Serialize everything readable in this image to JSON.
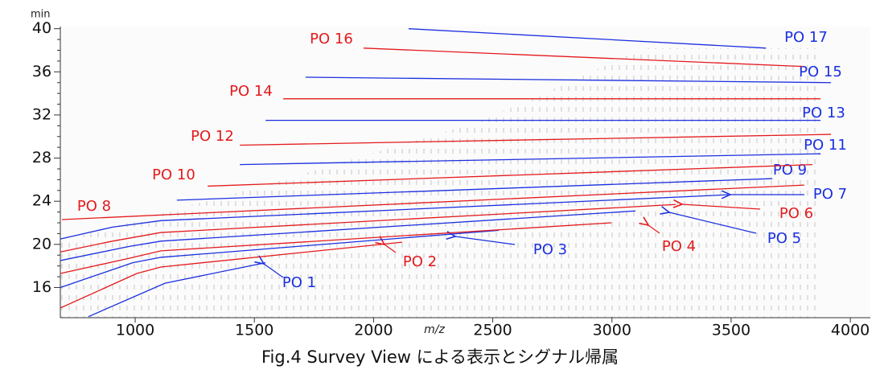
{
  "chart_data": {
    "type": "line",
    "caption": "Fig.4 Survey View による表示とシグナル帰属",
    "x_label": "m/z",
    "y_label": "min",
    "xlim": [
      686,
      4084
    ],
    "ylim": [
      13.2,
      40.2
    ],
    "xticks": [
      1000,
      1500,
      2000,
      2500,
      3000,
      3500,
      4000
    ],
    "yticks": [
      16,
      20,
      24,
      28,
      32,
      36,
      40
    ],
    "series": [
      {
        "name": "PO 1",
        "color": "#1a2fe0",
        "x": [
          804,
          1125,
          1547
        ],
        "values": [
          13.3,
          16.4,
          18.3
        ]
      },
      {
        "name": "PO 2",
        "color": "#e41a1c",
        "x": [
          686,
          1007,
          1108,
          2120
        ],
        "values": [
          14.1,
          17.3,
          17.9,
          20.2
        ]
      },
      {
        "name": "PO 3",
        "color": "#1a2fe0",
        "x": [
          686,
          990,
          1108,
          2525
        ],
        "values": [
          16.0,
          18.3,
          18.8,
          21.3
        ]
      },
      {
        "name": "PO 4",
        "color": "#e41a1c",
        "x": [
          686,
          973,
          1108,
          2998
        ],
        "values": [
          17.3,
          18.7,
          19.4,
          22.0
        ]
      },
      {
        "name": "PO 5",
        "color": "#1a2fe0",
        "x": [
          686,
          973,
          1108,
          3099
        ],
        "values": [
          18.5,
          19.8,
          20.3,
          23.1
        ]
      },
      {
        "name": "PO 6",
        "color": "#e41a1c",
        "x": [
          686,
          905,
          1108,
          3268
        ],
        "values": [
          19.3,
          20.3,
          21.1,
          23.7
        ]
      },
      {
        "name": "PO 7",
        "color": "#1a2fe0",
        "x": [
          686,
          905,
          1108,
          3487
        ],
        "values": [
          20.5,
          21.6,
          22.2,
          24.6
        ]
      },
      {
        "name": "PO 8",
        "color": "#e41a1c",
        "x": [
          693,
          3807
        ],
        "values": [
          22.3,
          25.5
        ]
      },
      {
        "name": "PO 9",
        "color": "#1a2fe0",
        "x": [
          1175,
          3673
        ],
        "values": [
          24.1,
          26.1
        ]
      },
      {
        "name": "PO 10",
        "color": "#e41a1c",
        "x": [
          1304,
          3841
        ],
        "values": [
          25.4,
          27.4
        ]
      },
      {
        "name": "PO 11",
        "color": "#1a2fe0",
        "x": [
          1439,
          3875
        ],
        "values": [
          27.4,
          28.4
        ]
      },
      {
        "name": "PO 12",
        "color": "#e41a1c",
        "x": [
          1439,
          3919
        ],
        "values": [
          29.2,
          30.2
        ]
      },
      {
        "name": "PO 13",
        "color": "#1a2fe0",
        "x": [
          1547,
          3875
        ],
        "values": [
          31.5,
          31.5
        ]
      },
      {
        "name": "PO 14",
        "color": "#e41a1c",
        "x": [
          1621,
          3875
        ],
        "values": [
          33.5,
          33.5
        ]
      },
      {
        "name": "PO 15",
        "color": "#1a2fe0",
        "x": [
          1715,
          3919
        ],
        "values": [
          35.5,
          35.0
        ]
      },
      {
        "name": "PO 16",
        "color": "#e41a1c",
        "x": [
          1958,
          3801
        ],
        "values": [
          38.2,
          36.5
        ]
      },
      {
        "name": "PO 17",
        "color": "#1a2fe0",
        "x": [
          2147,
          3646
        ],
        "values": [
          40.0,
          38.2
        ]
      }
    ]
  }
}
